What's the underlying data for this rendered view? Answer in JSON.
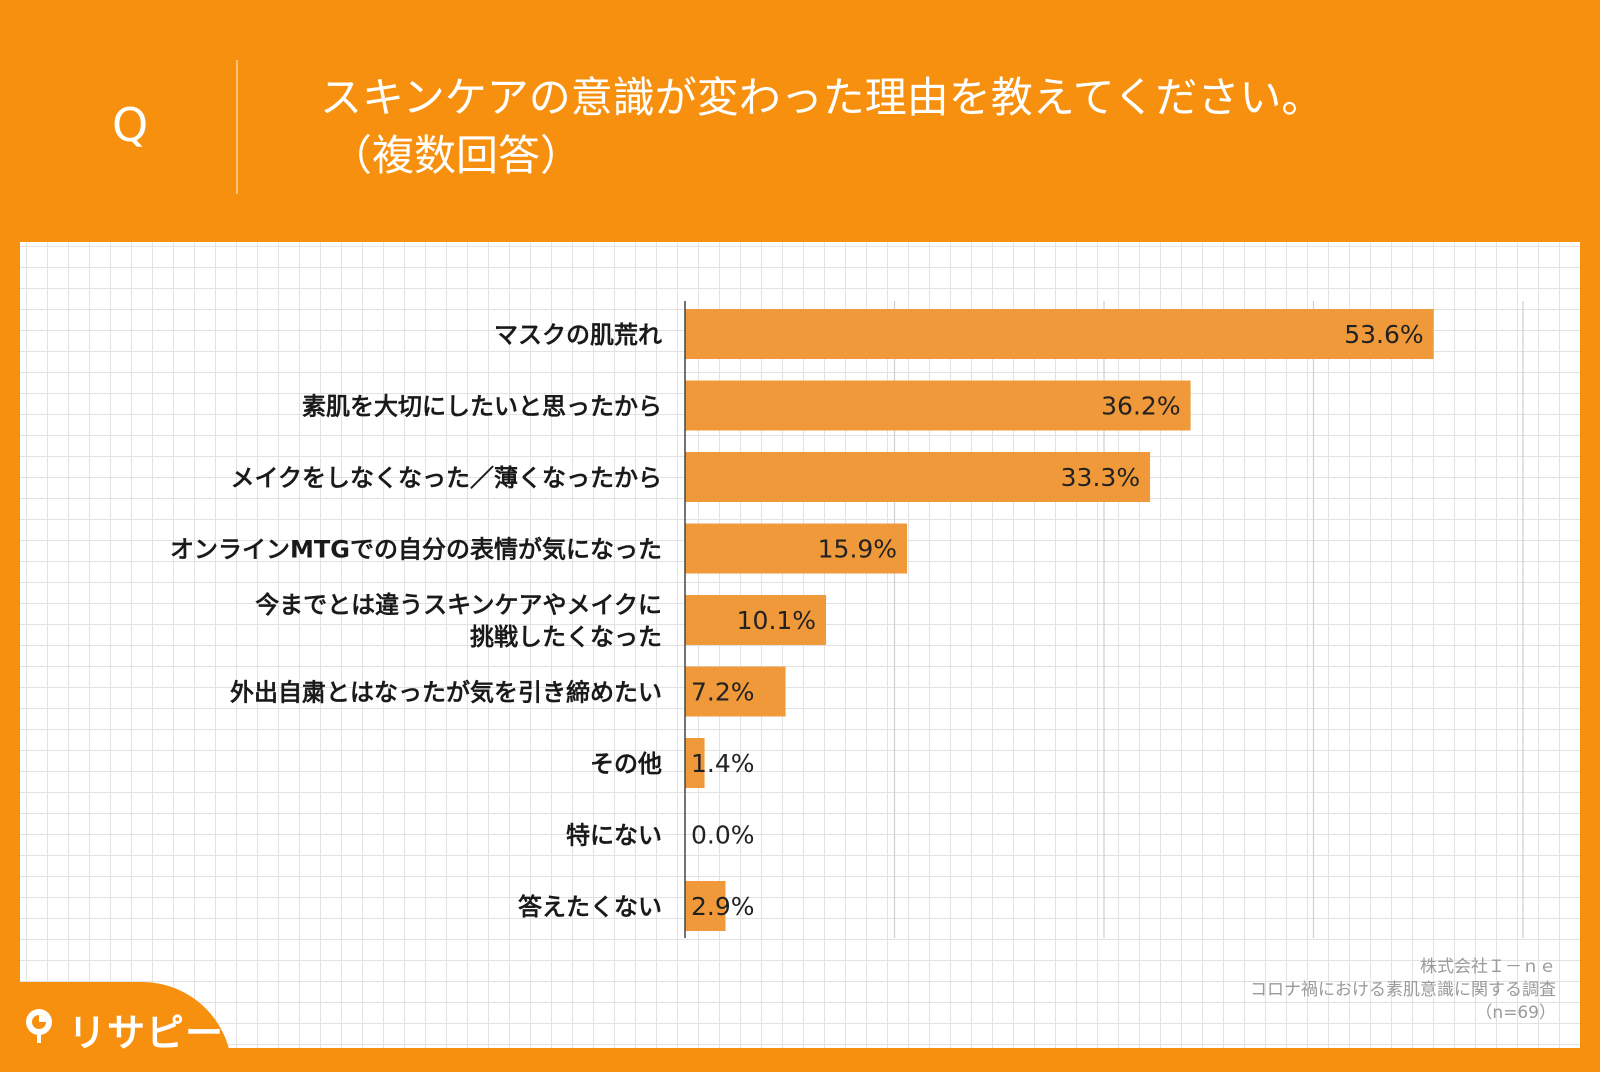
{
  "header": {
    "q_label": "Q",
    "title": "スキンケアの意識が変わった理由を教えてください。",
    "subtitle": "（複数回答）"
  },
  "chart_data": {
    "type": "bar",
    "orientation": "horizontal",
    "title": "スキンケアの意識が変わった理由を教えてください。（複数回答）",
    "categories": [
      "マスクの肌荒れ",
      "素肌を大切にしたいと思ったから",
      "メイクをしなくなった／薄くなったから",
      "オンラインMTGでの自分の表情が気になった",
      "今までとは違うスキンケアやメイクに\n挑戦したくなった",
      "外出自粛とはなったが気を引き締めたい",
      "その他",
      "特にない",
      "答えたくない"
    ],
    "values": [
      53.6,
      36.2,
      33.3,
      15.9,
      10.1,
      7.2,
      1.4,
      0.0,
      2.9
    ],
    "value_labels": [
      "53.6%",
      "36.2%",
      "33.3%",
      "15.9%",
      "10.1%",
      "7.2%",
      "1.4%",
      "0.0%",
      "2.9%"
    ],
    "xlim": [
      0,
      60
    ],
    "grid_step": 15,
    "bar_color": "#f0993a"
  },
  "footer": {
    "company": "株式会社Ｉ－ｎｅ",
    "survey": "コロナ禍における素肌意識に関する調査",
    "sample": "（n=69）",
    "logo_text": "リサピー"
  },
  "colors": {
    "background": "#f7900f",
    "panel": "#ffffff",
    "bar": "#f0993a"
  }
}
